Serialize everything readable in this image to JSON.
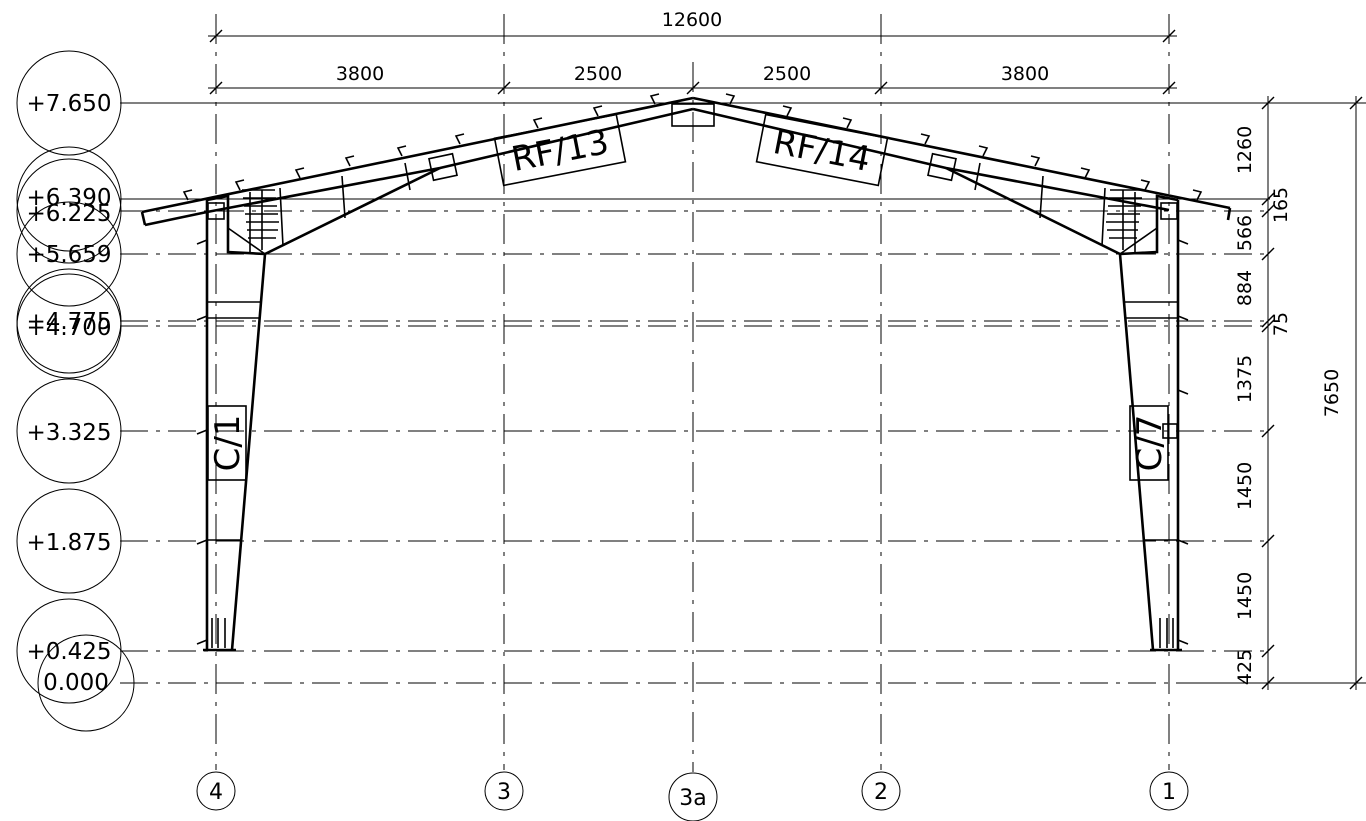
{
  "dimensions": {
    "overall": "12600",
    "spans": [
      "3800",
      "2500",
      "2500",
      "3800"
    ],
    "right_segments": [
      "1260",
      "165",
      "566",
      "884",
      "75",
      "1375",
      "1450",
      "1450",
      "425"
    ],
    "total_height": "7650"
  },
  "levels": [
    "+7.650",
    "+6.390",
    "+6.225",
    "+5.659",
    "+4.775",
    "+4.700",
    "+3.325",
    "+1.875",
    "+0.425",
    "0.000"
  ],
  "member_tags": {
    "rafter_left": "RF/13",
    "rafter_right": "RF/14",
    "column_left": "C/1",
    "column_right": "C/7"
  },
  "grid_ids": [
    "4",
    "3",
    "3a",
    "2",
    "1"
  ]
}
